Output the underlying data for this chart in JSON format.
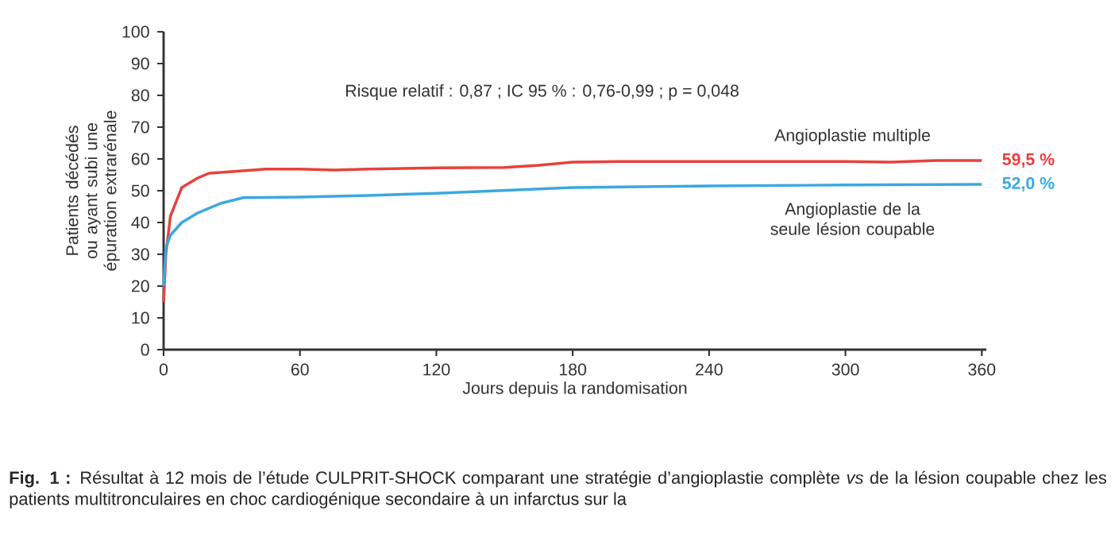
{
  "chart_data": {
    "type": "line",
    "xlabel": "Jours depuis la randomisation",
    "ylabel": "Patients décédés ou ayant subi une épuration extrarénale",
    "xlim": [
      0,
      362
    ],
    "xticks": [
      0,
      60,
      120,
      180,
      240,
      300,
      360
    ],
    "ylim": [
      0,
      100
    ],
    "yticks": [
      0,
      10,
      20,
      30,
      40,
      50,
      60,
      70,
      80,
      90,
      100
    ],
    "marker": "none",
    "line_style": "solid",
    "grid": false,
    "legend": false,
    "series": [
      {
        "name": "Angioplastie multiple",
        "color": "#e8413c",
        "x": [
          0,
          1,
          3,
          8,
          15,
          20,
          30,
          45,
          60,
          75,
          90,
          120,
          150,
          165,
          180,
          200,
          240,
          300,
          320,
          340,
          360
        ],
        "values": [
          15,
          30,
          42,
          51,
          54,
          55.5,
          56,
          56.8,
          56.8,
          56.5,
          56.8,
          57.2,
          57.3,
          58,
          59,
          59.2,
          59.2,
          59.2,
          59,
          59.5,
          59.5
        ],
        "value_labels": [
          null,
          null,
          null,
          null,
          null,
          null,
          null,
          null,
          null,
          null,
          null,
          null,
          null,
          null,
          null,
          null,
          null,
          null,
          null,
          null,
          "59,5 %"
        ]
      },
      {
        "name": "Angioplastie de la seule lésion coupable",
        "color": "#3aa8e0",
        "x": [
          0,
          1,
          3,
          8,
          15,
          25,
          35,
          60,
          90,
          120,
          180,
          240,
          300,
          360
        ],
        "values": [
          20,
          32,
          36,
          40,
          43,
          46,
          47.8,
          48,
          48.5,
          49.2,
          51,
          51.5,
          51.8,
          52
        ],
        "value_labels": [
          null,
          null,
          null,
          null,
          null,
          null,
          null,
          null,
          null,
          null,
          null,
          null,
          null,
          "52,0 %"
        ]
      }
    ],
    "annotations": [
      "Risque relatif : 0,87 ; IC 95 % : 0,76-0,99 ; p = 0,048",
      "**Fig. 1 :** Résultat à 12 mois de l’étude CULPRIT-SHOCK comparant une stratégie d’angioplastie complète *vs* de la lésion coupable chez les patients multitronculaires en choc cardiogénique secondaire à un infarctus sur la"
    ]
  }
}
